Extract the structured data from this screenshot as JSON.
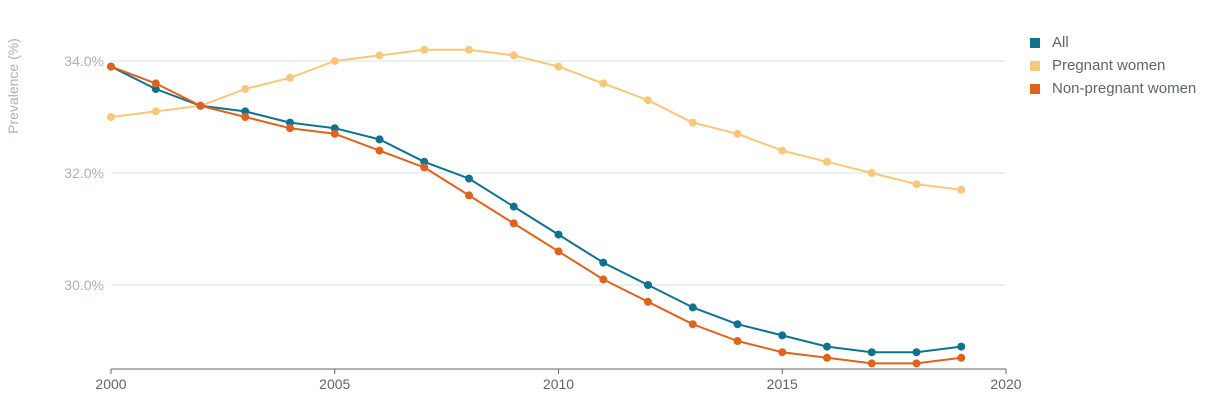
{
  "chart_data": {
    "type": "line",
    "title": "",
    "xlabel": "",
    "ylabel": "Prevalence (%)",
    "xlim": [
      2000,
      2020
    ],
    "ylim": [
      28.5,
      34.8
    ],
    "x_ticks": [
      2000,
      2005,
      2010,
      2015,
      2020
    ],
    "y_ticks": [
      30.0,
      32.0,
      34.0
    ],
    "y_tick_labels": [
      "30.0%",
      "32.0%",
      "34.0%"
    ],
    "grid": "horizontal",
    "legend_position": "top-right",
    "x": [
      2000,
      2001,
      2002,
      2003,
      2004,
      2005,
      2006,
      2007,
      2008,
      2009,
      2010,
      2011,
      2012,
      2013,
      2014,
      2015,
      2016,
      2017,
      2018,
      2019
    ],
    "series": [
      {
        "name": "All",
        "color": "#0f7390",
        "values": [
          33.9,
          33.5,
          33.2,
          33.1,
          32.9,
          32.8,
          32.6,
          32.2,
          31.9,
          31.4,
          30.9,
          30.4,
          30.0,
          29.6,
          29.3,
          29.1,
          28.9,
          28.8,
          28.8,
          28.9
        ]
      },
      {
        "name": "Pregnant women",
        "color": "#f9c77a",
        "values": [
          33.0,
          33.1,
          33.2,
          33.5,
          33.7,
          34.0,
          34.1,
          34.2,
          34.2,
          34.1,
          33.9,
          33.6,
          33.3,
          32.9,
          32.7,
          32.4,
          32.2,
          32.0,
          31.8,
          31.7
        ]
      },
      {
        "name": "Non-pregnant women",
        "color": "#e0631b",
        "values": [
          33.9,
          33.6,
          33.2,
          33.0,
          32.8,
          32.7,
          32.4,
          32.1,
          31.6,
          31.1,
          30.6,
          30.1,
          29.7,
          29.3,
          29.0,
          28.8,
          28.7,
          28.6,
          28.6,
          28.7
        ]
      }
    ]
  }
}
